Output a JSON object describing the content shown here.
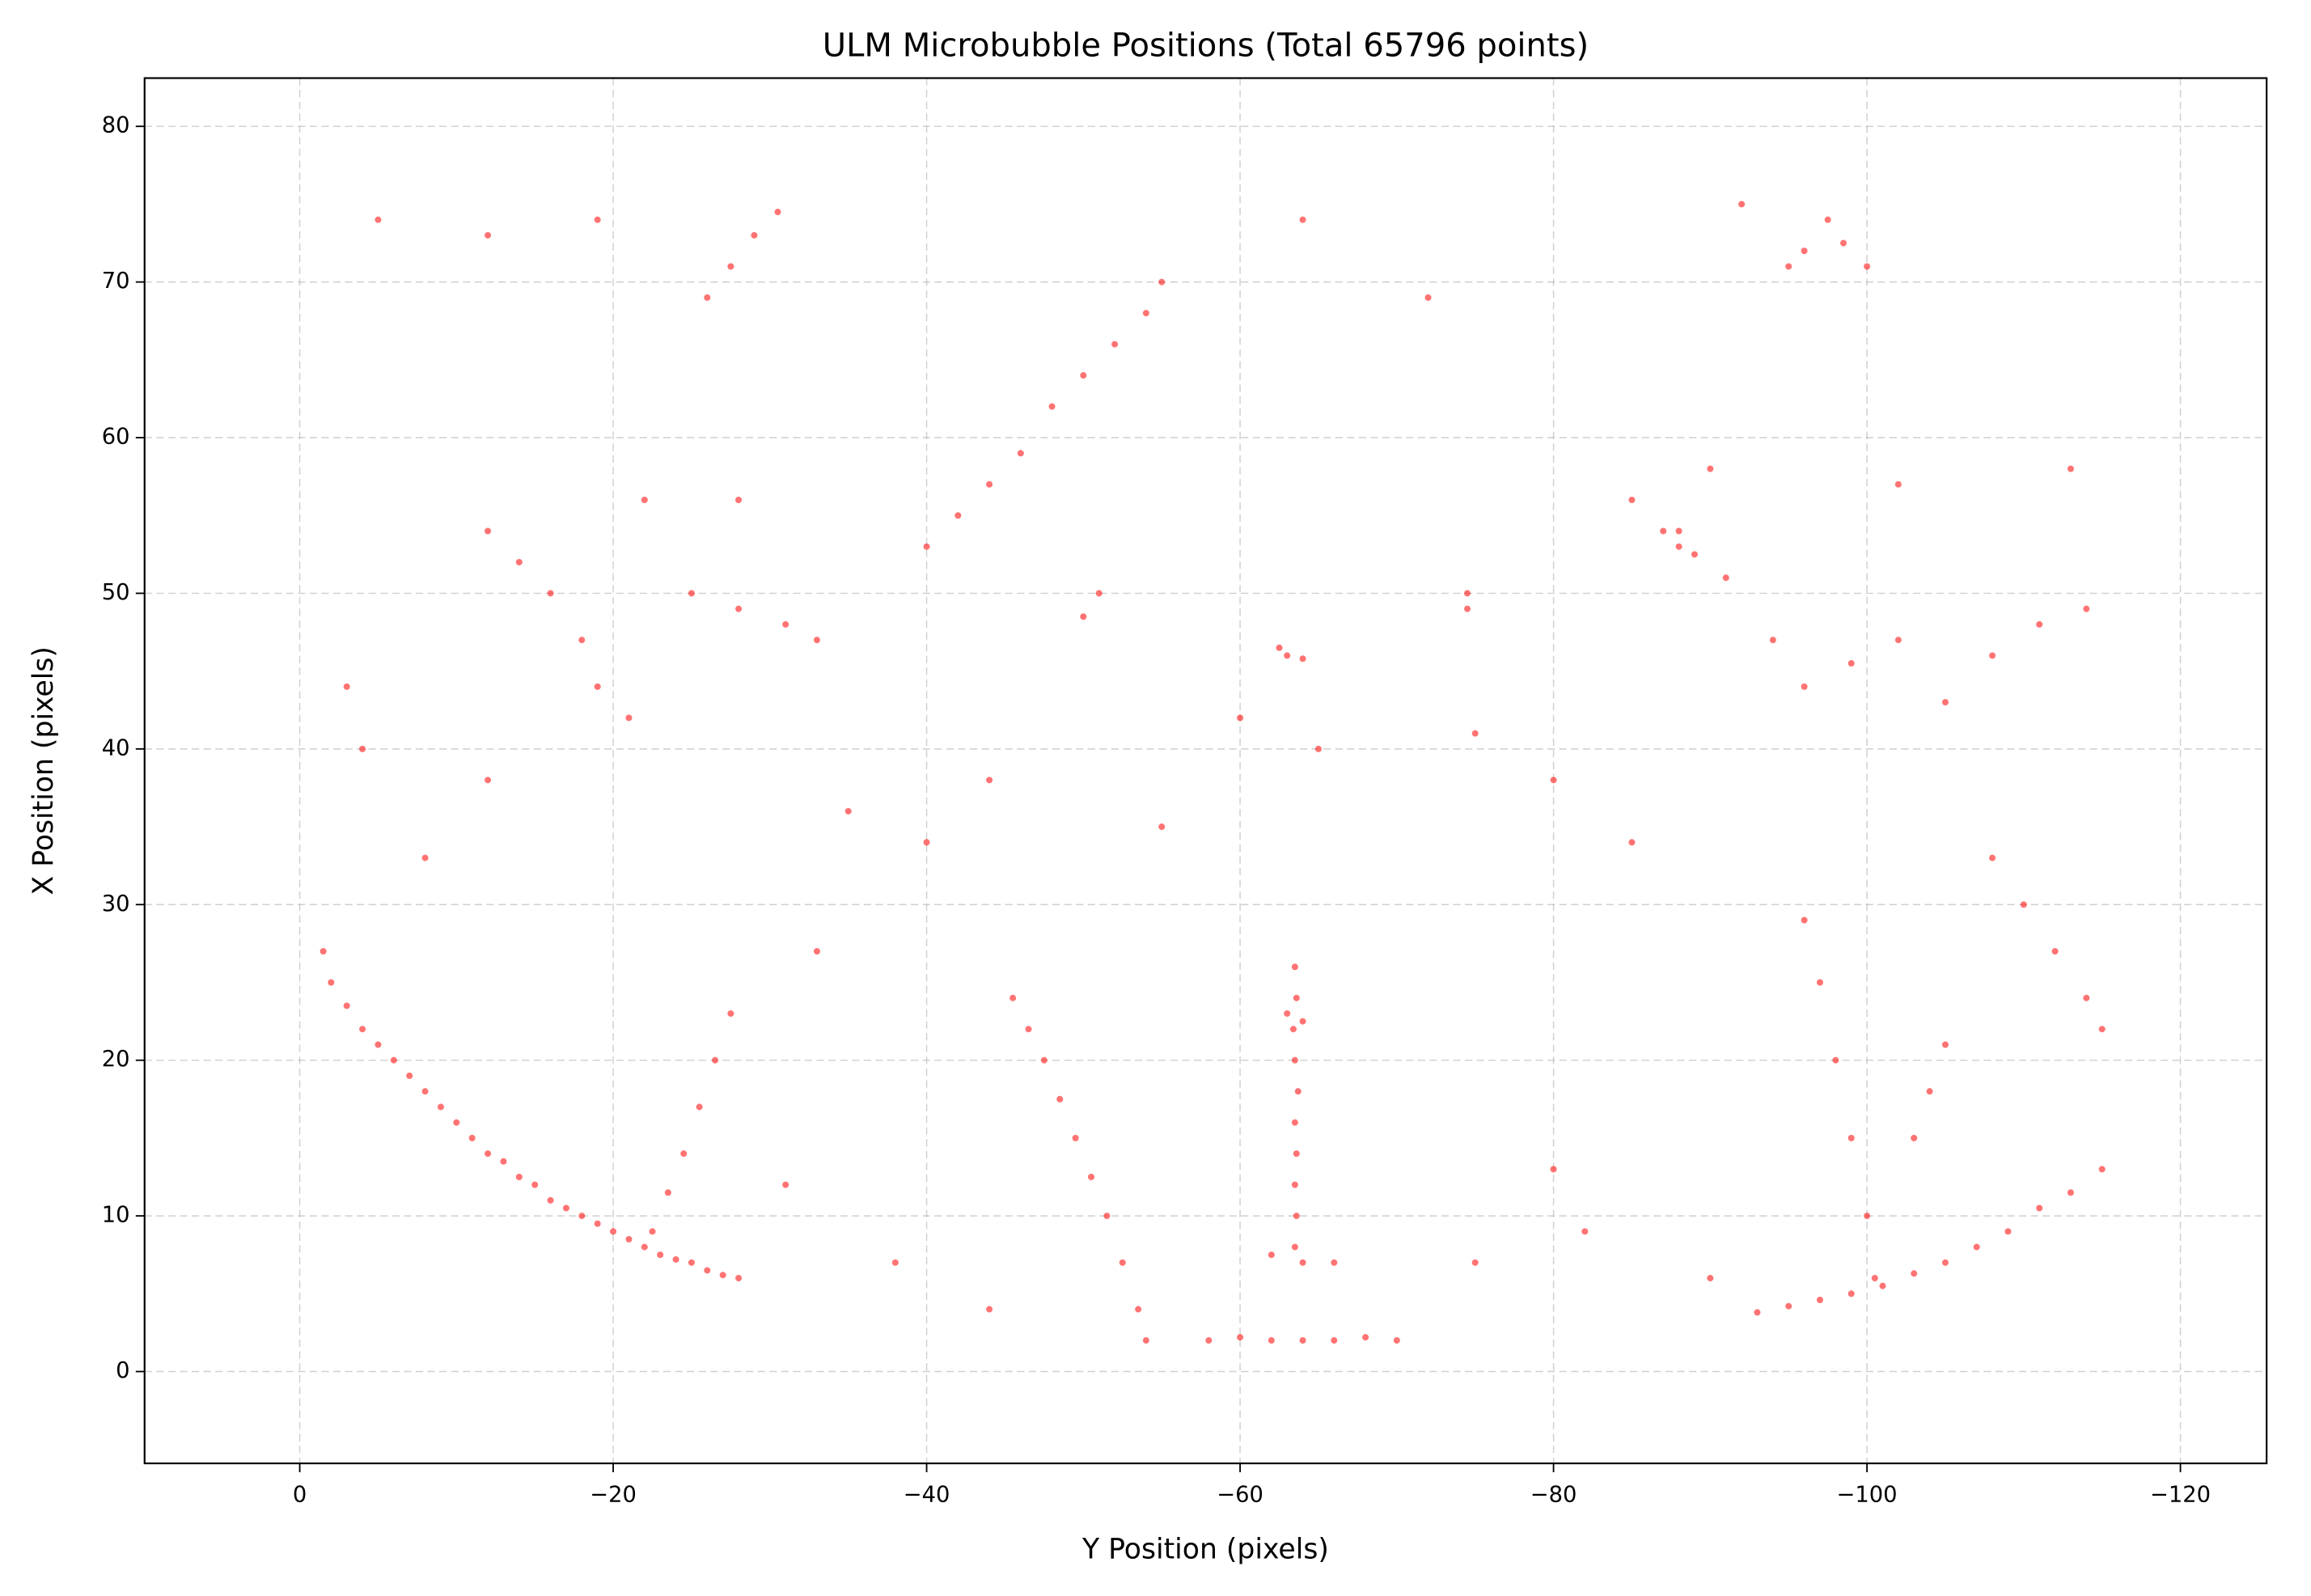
{
  "chart_data": {
    "type": "scatter",
    "title": "ULM Microbubble Positions (Total 65796 points)",
    "x_label": "Y Position (pixels)",
    "y_label": "X Position (pixels)",
    "color": "#ff0000",
    "grid": true,
    "xlim": [
      9.9,
      -125.5
    ],
    "ylim": [
      -5.9,
      83.1
    ],
    "xticks": [
      0,
      {
        "value": -20,
        "label": "−20"
      },
      {
        "value": -40,
        "label": "−40"
      },
      {
        "value": -60,
        "label": "−60"
      },
      {
        "value": -80,
        "label": "−80"
      },
      {
        "value": -100,
        "label": "−100"
      },
      {
        "value": -120,
        "label": "−120"
      }
    ],
    "yticks": [
      0,
      10,
      20,
      30,
      40,
      50,
      60,
      70,
      80
    ],
    "x": [
      -1.5,
      -2,
      -3,
      -4,
      -5,
      -6,
      -7,
      -8,
      -9,
      -10,
      -11,
      -12,
      -13,
      -14,
      -15,
      -16,
      -17,
      -18,
      -19,
      -20,
      -21,
      -22,
      -23,
      -24,
      -25,
      -26,
      -27,
      -28,
      -93,
      -95,
      -97,
      -99,
      -101,
      -103,
      -105,
      -107,
      -109,
      -111,
      -113,
      -115,
      -63.5,
      -63.6,
      -63.4,
      -63.5,
      -63.7,
      -63.5,
      -63.6,
      -63.5,
      -63.6,
      -63.5,
      -64,
      -66,
      -62,
      -63,
      -64,
      -58,
      -60,
      -62,
      -64,
      -66,
      -68,
      -70,
      -45.5,
      -46.5,
      -47.5,
      -48.5,
      -49.5,
      -50.5,
      -51.5,
      -52.5,
      -53.5,
      -54,
      -27.5,
      -26.5,
      -25.5,
      -24.5,
      -23.5,
      -22.5,
      -96,
      -97,
      -98,
      -99,
      -100,
      -100.5,
      -40,
      -42,
      -44,
      -46,
      -48,
      -50,
      -52,
      -54,
      -55,
      -63,
      -64,
      -62.5,
      -74.5,
      -74.5,
      -88,
      -89,
      -87,
      -51,
      -50,
      -28,
      -26,
      -27.5,
      -29,
      -30.5,
      -12,
      -14,
      -16,
      -18,
      -19,
      -21,
      -25,
      -28,
      -31,
      -33,
      -85,
      -88,
      -91,
      -94,
      -96,
      -99,
      -102,
      -105,
      -108,
      -111,
      -114,
      -108,
      -110,
      -112,
      -114,
      -115,
      -92,
      -96,
      -100,
      -95,
      -103,
      -104,
      -105,
      -97.5,
      -98.5,
      -35,
      -40,
      -60,
      -65,
      -80,
      -85,
      -75,
      -12,
      -8,
      -3,
      -4,
      -22,
      -38,
      -44,
      -82,
      -90,
      -75,
      -12,
      -5,
      -19,
      -64,
      -72,
      -90,
      -102,
      -113,
      -33,
      -31,
      -80,
      -55,
      -44
    ],
    "y": [
      27,
      25,
      23.5,
      22,
      21,
      20,
      19,
      18,
      17,
      16,
      15,
      14,
      13.5,
      12.5,
      12,
      11,
      10.5,
      10,
      9.5,
      9,
      8.5,
      8,
      7.5,
      7.2,
      7,
      6.5,
      6.2,
      6,
      3.8,
      4.2,
      4.6,
      5,
      5.5,
      6.3,
      7,
      8,
      9,
      10.5,
      11.5,
      13,
      26,
      24,
      22,
      20,
      18,
      16,
      14,
      12,
      10,
      8,
      7,
      7,
      7.5,
      23,
      22.5,
      2,
      2.2,
      2,
      2,
      2,
      2.2,
      2,
      24,
      22,
      20,
      17.5,
      15,
      12.5,
      10,
      7,
      4,
      2,
      23,
      20,
      17,
      14,
      11.5,
      9,
      29,
      25,
      20,
      15,
      10,
      6,
      53,
      55,
      57,
      59,
      62,
      64,
      66,
      68,
      70,
      46,
      45.8,
      46.5,
      50,
      49,
      53,
      52.5,
      54,
      50,
      48.5,
      56,
      69,
      71,
      73,
      74.5,
      54,
      52,
      50,
      47,
      44,
      42,
      50,
      49,
      48,
      47,
      56,
      54,
      51,
      47,
      44,
      45.5,
      47,
      43,
      46,
      48,
      49,
      33,
      30,
      27,
      24,
      22,
      75,
      72,
      71,
      71,
      15,
      18,
      21,
      74,
      72.5,
      36,
      34,
      42,
      40,
      38,
      34,
      41,
      38,
      33,
      44,
      40,
      56,
      7,
      4,
      9,
      6,
      7,
      73,
      74,
      74,
      74,
      69,
      58,
      57,
      58,
      27,
      12,
      13,
      35,
      38
    ]
  }
}
